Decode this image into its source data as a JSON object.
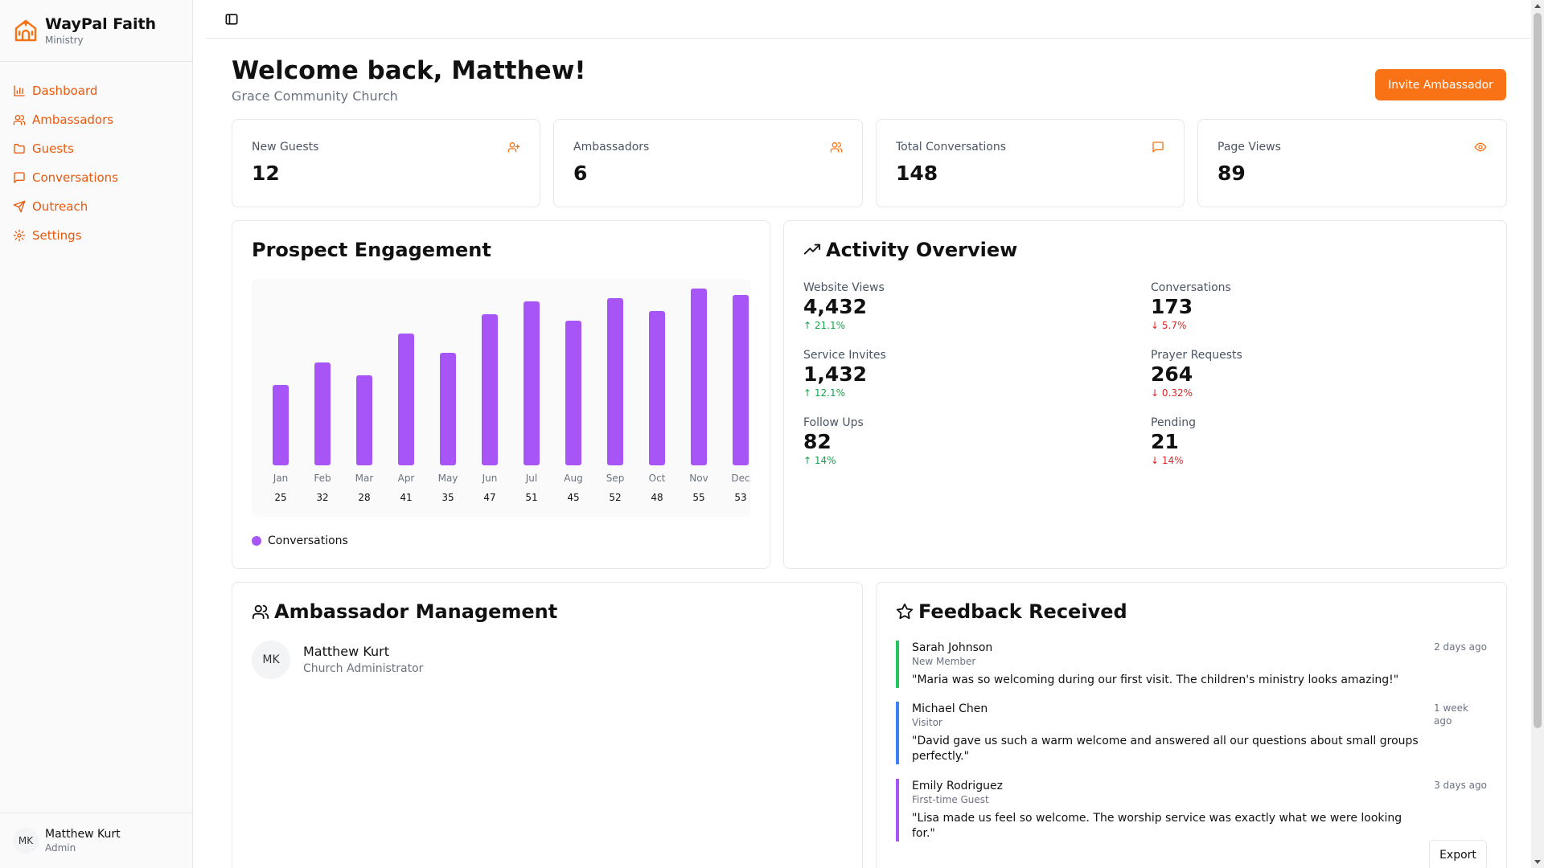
{
  "brand": {
    "title": "WayPal Faith",
    "subtitle": "Ministry"
  },
  "nav": {
    "items": [
      {
        "label": "Dashboard",
        "icon": "bar-chart-icon"
      },
      {
        "label": "Ambassadors",
        "icon": "users-icon"
      },
      {
        "label": "Guests",
        "icon": "folder-icon"
      },
      {
        "label": "Conversations",
        "icon": "message-square-icon"
      },
      {
        "label": "Outreach",
        "icon": "send-icon"
      },
      {
        "label": "Settings",
        "icon": "gear-icon"
      }
    ]
  },
  "sidebar_user": {
    "initials": "MK",
    "name": "Matthew Kurt",
    "role": "Admin"
  },
  "header": {
    "title": "Welcome back, Matthew!",
    "subtitle": "Grace Community Church",
    "invite_label": "Invite Ambassador"
  },
  "stats": [
    {
      "label": "New Guests",
      "value": "12",
      "icon": "user-plus-icon"
    },
    {
      "label": "Ambassadors",
      "value": "6",
      "icon": "users-icon"
    },
    {
      "label": "Total Conversations",
      "value": "148",
      "icon": "message-square-icon"
    },
    {
      "label": "Page Views",
      "value": "89",
      "icon": "eye-icon"
    }
  ],
  "engagement": {
    "title": "Prospect Engagement",
    "legend": "Conversations"
  },
  "chart_data": {
    "type": "bar",
    "title": "Prospect Engagement",
    "categories": [
      "Jan",
      "Feb",
      "Mar",
      "Apr",
      "May",
      "Jun",
      "Jul",
      "Aug",
      "Sep",
      "Oct",
      "Nov",
      "Dec"
    ],
    "series": [
      {
        "name": "Conversations",
        "values": [
          25,
          32,
          28,
          41,
          35,
          47,
          51,
          45,
          52,
          48,
          55,
          53
        ]
      }
    ],
    "ylim": [
      0,
      55
    ],
    "color": "#a855f7"
  },
  "activity": {
    "title": "Activity Overview",
    "items": [
      {
        "label": "Website Views",
        "value": "4,432",
        "change": "↑ 21.1%",
        "direction": "up"
      },
      {
        "label": "Conversations",
        "value": "173",
        "change": "↓ 5.7%",
        "direction": "down"
      },
      {
        "label": "Service Invites",
        "value": "1,432",
        "change": "↑ 12.1%",
        "direction": "up"
      },
      {
        "label": "Prayer Requests",
        "value": "264",
        "change": "↓ 0.32%",
        "direction": "down"
      },
      {
        "label": "Follow Ups",
        "value": "82",
        "change": "↑ 14%",
        "direction": "up"
      },
      {
        "label": "Pending",
        "value": "21",
        "change": "↓ 14%",
        "direction": "down"
      }
    ]
  },
  "ambassadors": {
    "title": "Ambassador Management",
    "items": [
      {
        "initials": "MK",
        "name": "Matthew Kurt",
        "role": "Church Administrator"
      }
    ]
  },
  "feedback": {
    "title": "Feedback Received",
    "export_label": "Export",
    "items": [
      {
        "name": "Sarah Johnson",
        "role": "New Member",
        "time": "2 days ago",
        "quote": "\"Maria was so welcoming during our first visit. The children's ministry looks amazing!\"",
        "color": "#22c55e"
      },
      {
        "name": "Michael Chen",
        "role": "Visitor",
        "time": "1 week ago",
        "quote": "\"David gave us such a warm welcome and answered all our questions about small groups perfectly.\"",
        "color": "#3b82f6"
      },
      {
        "name": "Emily Rodriguez",
        "role": "First-time Guest",
        "time": "3 days ago",
        "quote": "\"Lisa made us feel so welcome. The worship service was exactly what we were looking for.\"",
        "color": "#a855f7"
      }
    ]
  }
}
